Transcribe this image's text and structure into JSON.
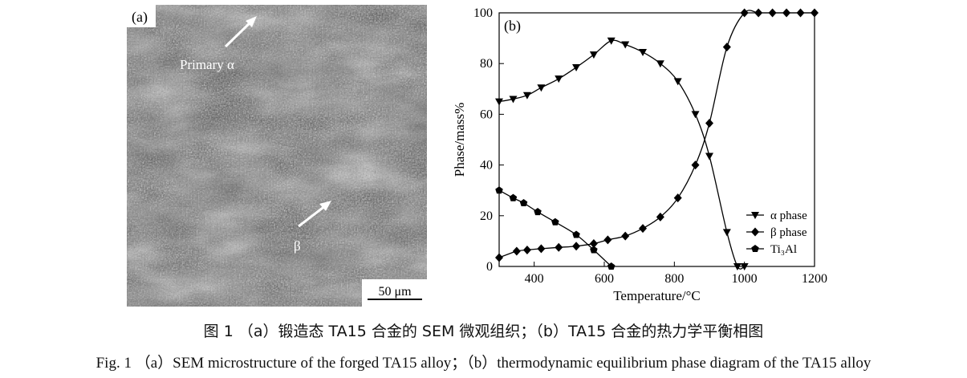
{
  "sem": {
    "panel_label": "(a)",
    "annotations": [
      {
        "label": "Primary α"
      },
      {
        "label": "β"
      }
    ],
    "scale_bar_label": "50 μm"
  },
  "chart_data": {
    "type": "line",
    "panel_label": "(b)",
    "xlabel": "Temperature/°C",
    "ylabel": "Phase/mass%",
    "xlim": [
      300,
      1200
    ],
    "ylim": [
      0,
      100
    ],
    "xticks": [
      400,
      600,
      800,
      1000,
      1200
    ],
    "yticks": [
      0,
      20,
      40,
      60,
      80,
      100
    ],
    "grid": false,
    "legend_position": "bottom-right",
    "series": [
      {
        "name": "α phase",
        "marker": "triangle-down",
        "x": [
          300,
          340,
          380,
          420,
          470,
          520,
          570,
          620,
          660,
          710,
          760,
          810,
          860,
          900,
          950,
          980,
          1000
        ],
        "y": [
          65,
          66,
          67.5,
          70.5,
          74,
          78.5,
          83.5,
          89,
          87.5,
          84.5,
          80,
          73,
          60,
          43.5,
          13.5,
          0,
          0
        ]
      },
      {
        "name": "β phase",
        "marker": "diamond",
        "x": [
          300,
          350,
          380,
          420,
          470,
          520,
          570,
          610,
          660,
          710,
          760,
          810,
          860,
          900,
          950,
          1000,
          1040,
          1080,
          1120,
          1160,
          1200
        ],
        "y": [
          3.5,
          6,
          6.5,
          7,
          7.5,
          8,
          9,
          10.5,
          12,
          15,
          19.5,
          27,
          40,
          56.5,
          86.5,
          100,
          100,
          100,
          100,
          100,
          100
        ]
      },
      {
        "name": "Ti₃Al",
        "marker": "pentagon",
        "x": [
          300,
          340,
          370,
          410,
          460,
          520,
          570,
          620
        ],
        "y": [
          30,
          27,
          25,
          21.5,
          17.5,
          12.5,
          6.5,
          0
        ]
      }
    ]
  },
  "caption": {
    "cn": "图 1 （a）锻造态 TA15 合金的 SEM 微观组织；（b）TA15 合金的热力学平衡相图",
    "en": "Fig. 1 （a）SEM microstructure of the forged TA15 alloy；（b）thermodynamic equilibrium phase diagram of the TA15 alloy"
  }
}
